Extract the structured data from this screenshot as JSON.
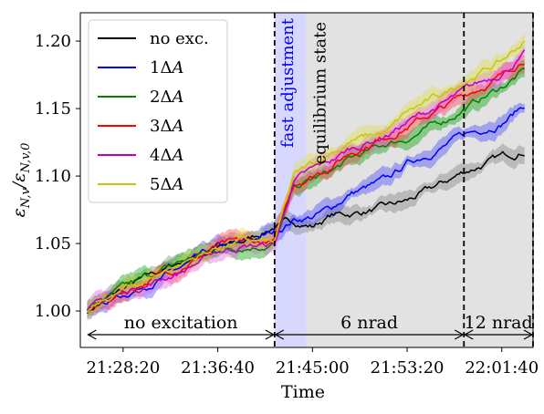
{
  "chart_data": {
    "type": "line",
    "xlabel": "Time",
    "ylabel": "ε_{N,v}/ε_{N,v,0}",
    "x_tick_labels": [
      "21:28:20",
      "21:36:40",
      "21:45:00",
      "21:53:20",
      "22:01:40"
    ],
    "y_tick_labels": [
      "1.00",
      "1.05",
      "1.10",
      "1.15",
      "1.20"
    ],
    "x_ticks": [
      "21:28:20",
      "21:36:40",
      "21:45:00",
      "21:53:20",
      "22:01:40"
    ],
    "y_ticks": [
      1.0,
      1.05,
      1.1,
      1.15,
      1.2
    ],
    "xlim": [
      "21:24:34",
      "22:04:25"
    ],
    "ylim": [
      0.973,
      1.221
    ],
    "grid": false,
    "legend_position": "top-left",
    "series": [
      {
        "name": "no exc.",
        "color": "#000000",
        "band_color": "#808080",
        "x": [
          "21:25:10",
          "21:28:20",
          "21:33:20",
          "21:36:40",
          "21:38:40",
          "21:41:40",
          "21:43:20",
          "21:45:00",
          "21:46:40",
          "21:48:20",
          "21:51:40",
          "21:53:20",
          "21:56:40",
          "21:58:20",
          "22:01:40",
          "22:03:40"
        ],
        "y": [
          1.0,
          1.016,
          1.036,
          1.047,
          1.05,
          1.063,
          1.066,
          1.063,
          1.071,
          1.072,
          1.077,
          1.081,
          1.095,
          1.103,
          1.114,
          1.119
        ]
      },
      {
        "name": "1ΔA",
        "color": "#0000ff",
        "band_color": "#4444ff",
        "x": [
          "21:25:10",
          "21:28:20",
          "21:33:20",
          "21:36:40",
          "21:38:40",
          "21:41:40",
          "21:43:20",
          "21:45:00",
          "21:46:40",
          "21:48:20",
          "21:51:40",
          "21:53:20",
          "21:56:40",
          "21:58:20",
          "22:01:40",
          "22:03:40"
        ],
        "y": [
          1.0,
          1.012,
          1.031,
          1.046,
          1.049,
          1.058,
          1.068,
          1.07,
          1.076,
          1.087,
          1.097,
          1.109,
          1.123,
          1.13,
          1.14,
          1.153
        ]
      },
      {
        "name": "2ΔA",
        "color": "#008000",
        "band_color": "#00a000",
        "x": [
          "21:25:10",
          "21:28:20",
          "21:33:20",
          "21:36:40",
          "21:38:40",
          "21:41:40",
          "21:43:20",
          "21:45:00",
          "21:46:40",
          "21:48:20",
          "21:51:40",
          "21:53:20",
          "21:56:40",
          "21:58:20",
          "22:01:40",
          "22:03:40"
        ],
        "y": [
          1.0,
          1.016,
          1.036,
          1.046,
          1.048,
          1.05,
          1.09,
          1.097,
          1.103,
          1.112,
          1.124,
          1.128,
          1.141,
          1.15,
          1.166,
          1.178
        ]
      },
      {
        "name": "3ΔA",
        "color": "#ff0000",
        "band_color": "#ff4040",
        "x": [
          "21:25:10",
          "21:28:20",
          "21:33:20",
          "21:36:40",
          "21:38:40",
          "21:41:40",
          "21:43:20",
          "21:45:00",
          "21:46:40",
          "21:48:20",
          "21:51:40",
          "21:53:20",
          "21:56:40",
          "21:58:20",
          "22:01:40",
          "22:03:40"
        ],
        "y": [
          1.0,
          1.014,
          1.033,
          1.048,
          1.05,
          1.051,
          1.094,
          1.101,
          1.108,
          1.118,
          1.13,
          1.137,
          1.151,
          1.16,
          1.174,
          1.188
        ]
      },
      {
        "name": "4ΔA",
        "color": "#c000c0",
        "band_color": "#e060e0",
        "x": [
          "21:25:10",
          "21:28:20",
          "21:33:20",
          "21:36:40",
          "21:38:40",
          "21:41:40",
          "21:43:20",
          "21:45:00",
          "21:46:40",
          "21:48:20",
          "21:51:40",
          "21:53:20",
          "21:56:40",
          "21:58:20",
          "22:01:40",
          "22:03:40"
        ],
        "y": [
          1.0,
          1.013,
          1.029,
          1.044,
          1.048,
          1.049,
          1.096,
          1.104,
          1.111,
          1.12,
          1.131,
          1.14,
          1.154,
          1.162,
          1.177,
          1.19
        ]
      },
      {
        "name": "5ΔA",
        "color": "#c8c800",
        "band_color": "#dede40",
        "x": [
          "21:25:10",
          "21:28:20",
          "21:33:20",
          "21:36:40",
          "21:38:40",
          "21:41:40",
          "21:43:20",
          "21:45:00",
          "21:46:40",
          "21:48:20",
          "21:51:40",
          "21:53:20",
          "21:56:40",
          "21:58:20",
          "22:01:40",
          "22:03:40"
        ],
        "y": [
          1.0,
          1.015,
          1.035,
          1.047,
          1.052,
          1.05,
          1.099,
          1.109,
          1.118,
          1.126,
          1.133,
          1.147,
          1.161,
          1.171,
          1.185,
          1.2
        ]
      }
    ],
    "regions": [
      {
        "label": "fast adjustment",
        "start": "21:41:40",
        "end": "21:44:27",
        "color": "#d8d8ff",
        "label_color": "#0000ff"
      },
      {
        "label": "equilibrium state",
        "start": "21:44:27",
        "end": "22:04:25",
        "color": "#e2e2e2",
        "label_color": "#000000"
      }
    ],
    "vlines": [
      "21:41:40",
      "21:58:20",
      "22:04:25"
    ],
    "annotations": [
      {
        "text": "no excitation",
        "from": "21:25:10",
        "to": "21:41:40"
      },
      {
        "text": "6 nrad",
        "from": "21:41:40",
        "to": "21:58:20"
      },
      {
        "text": "12 nrad",
        "from": "21:58:20",
        "to": "22:04:25"
      }
    ]
  }
}
